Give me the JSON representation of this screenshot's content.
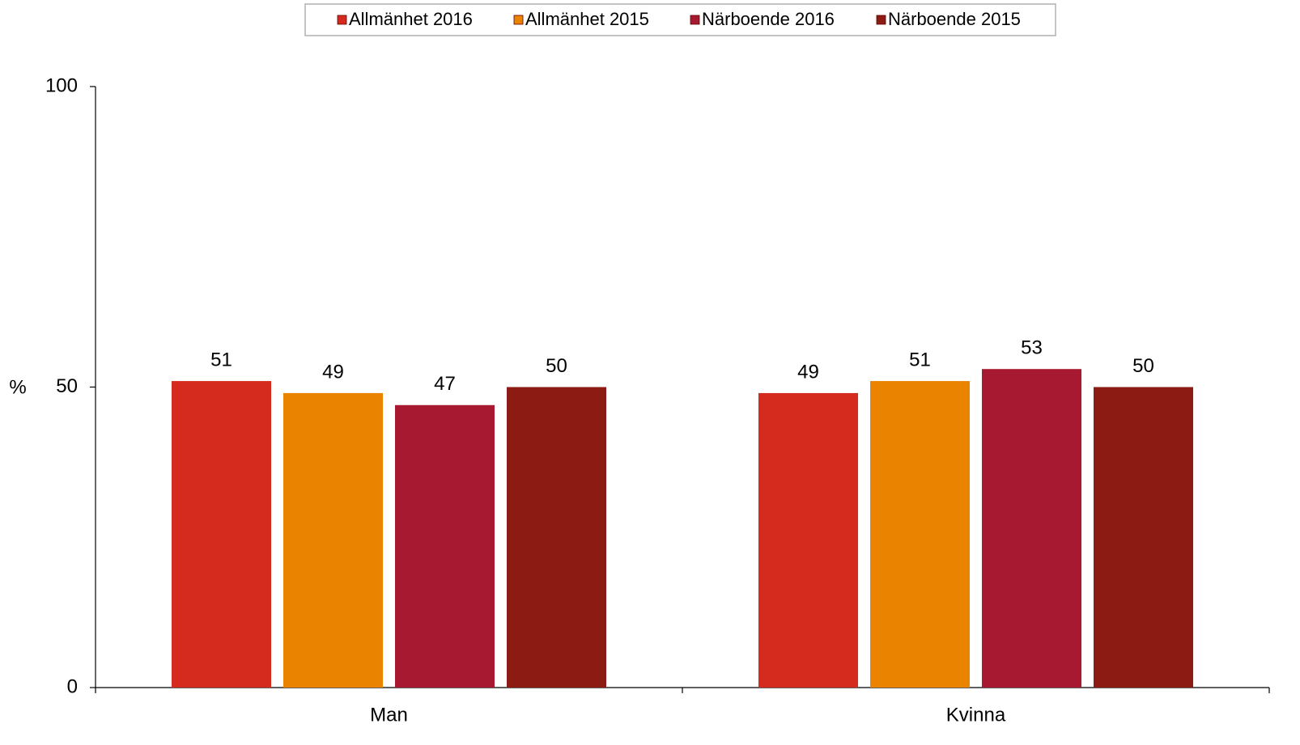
{
  "chart_data": {
    "type": "bar",
    "categories": [
      "Man",
      "Kvinna"
    ],
    "series": [
      {
        "name": "Allmänhet 2016",
        "color": "#d52b1e",
        "values": [
          51,
          49
        ]
      },
      {
        "name": "Allmänhet 2015",
        "color": "#e98300",
        "values": [
          49,
          51
        ]
      },
      {
        "name": "Närboende 2016",
        "color": "#a71930",
        "values": [
          47,
          53
        ]
      },
      {
        "name": "Närboende 2015",
        "color": "#8c1c13",
        "values": [
          50,
          50
        ]
      }
    ],
    "y_label": "%",
    "ylim": [
      0,
      100
    ],
    "yticks": [
      0,
      50,
      100
    ],
    "legend": "top"
  }
}
